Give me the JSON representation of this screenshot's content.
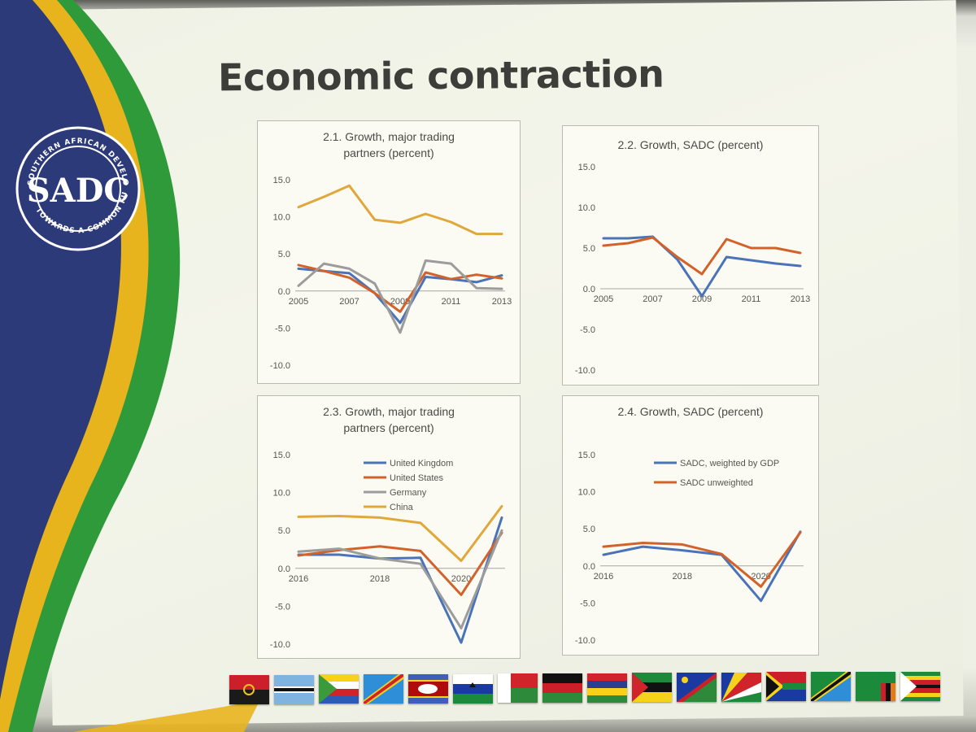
{
  "slide": {
    "title": "Economic contraction",
    "logo": {
      "ring_text_top": "SOUTHERN AFRICAN DEVELOPMENT COMMUNITY",
      "ring_text_bottom": "TOWARDS A COMMON FUTURE",
      "mark": "SADC"
    },
    "colors": {
      "navy": "#2d3a7a",
      "gold": "#e8b41e",
      "green": "#2f9a3a",
      "blue_series": "#4a73b8",
      "orange_series": "#d2622a",
      "gray_series": "#9c9c9c",
      "gold_series": "#e0a83a"
    },
    "flags": [
      "angola-flag",
      "botswana-flag",
      "comoros-flag",
      "drc-flag",
      "eswatini-flag",
      "lesotho-flag",
      "madagascar-flag",
      "malawi-flag",
      "mauritius-flag",
      "mozambique-flag",
      "namibia-flag",
      "seychelles-flag",
      "south-africa-flag",
      "tanzania-flag",
      "zambia-flag",
      "zimbabwe-flag"
    ]
  },
  "chart_data": [
    {
      "id": "c21",
      "type": "line",
      "title_lines": [
        "2.1. Growth, major trading",
        "partners (percent)"
      ],
      "x": [
        2005,
        2006,
        2007,
        2008,
        2009,
        2010,
        2011,
        2012,
        2013
      ],
      "x_tick_labels": [
        "2005",
        "2007",
        "2009",
        "2011",
        "2013"
      ],
      "y_ticks": [
        "15.0",
        "10.0",
        "5.0",
        "0.0",
        "-5.0",
        "-10.0"
      ],
      "ylim": [
        -10,
        15
      ],
      "legend": "none",
      "series": [
        {
          "color": "#4a73b8",
          "values": [
            3.0,
            2.7,
            2.4,
            -0.3,
            -4.3,
            1.9,
            1.6,
            1.2,
            2.1
          ]
        },
        {
          "color": "#d2622a",
          "values": [
            3.5,
            2.7,
            1.8,
            -0.3,
            -2.8,
            2.5,
            1.6,
            2.2,
            1.7
          ]
        },
        {
          "color": "#9c9c9c",
          "values": [
            0.7,
            3.7,
            3.0,
            1.0,
            -5.6,
            4.1,
            3.7,
            0.4,
            0.3
          ]
        },
        {
          "color": "#e0a83a",
          "values": [
            11.3,
            12.7,
            14.2,
            9.6,
            9.2,
            10.4,
            9.3,
            7.7,
            7.7
          ]
        }
      ]
    },
    {
      "id": "c22",
      "type": "line",
      "title_lines": [
        "2.2. Growth, SADC (percent)"
      ],
      "x": [
        2005,
        2006,
        2007,
        2008,
        2009,
        2010,
        2011,
        2012,
        2013
      ],
      "x_tick_labels": [
        "2005",
        "2007",
        "2009",
        "2011",
        "2013"
      ],
      "y_ticks": [
        "15.0",
        "10.0",
        "5.0",
        "0.0",
        "-5.0",
        "-10.0"
      ],
      "ylim": [
        -10,
        15
      ],
      "legend": "none",
      "series": [
        {
          "color": "#4a73b8",
          "values": [
            6.2,
            6.2,
            6.4,
            3.6,
            -0.9,
            3.9,
            3.5,
            3.1,
            2.8
          ]
        },
        {
          "color": "#d2622a",
          "values": [
            5.3,
            5.6,
            6.3,
            3.9,
            1.8,
            6.1,
            5.0,
            5.0,
            4.4
          ]
        }
      ]
    },
    {
      "id": "c23",
      "type": "line",
      "title_lines": [
        "2.3. Growth, major trading",
        "partners (percent)"
      ],
      "x": [
        2016,
        2017,
        2018,
        2019,
        2020,
        2021
      ],
      "x_tick_labels": [
        "2016",
        "2018",
        "2020"
      ],
      "y_ticks": [
        "15.0",
        "10.0",
        "5.0",
        "0.0",
        "-5.0",
        "-10.0"
      ],
      "ylim": [
        -10,
        15
      ],
      "legend": "top-left",
      "series": [
        {
          "name": "United Kingdom",
          "color": "#4a73b8",
          "values": [
            1.8,
            1.8,
            1.3,
            1.4,
            -9.8,
            6.7
          ]
        },
        {
          "name": "United States",
          "color": "#d2622a",
          "values": [
            1.7,
            2.4,
            2.9,
            2.3,
            -3.5,
            4.7
          ]
        },
        {
          "name": "Germany",
          "color": "#9c9c9c",
          "values": [
            2.2,
            2.6,
            1.3,
            0.6,
            -7.9,
            5.0
          ]
        },
        {
          "name": "China",
          "color": "#e0a83a",
          "values": [
            6.8,
            6.9,
            6.7,
            6.0,
            1.0,
            8.2
          ]
        }
      ]
    },
    {
      "id": "c24",
      "type": "line",
      "title_lines": [
        "2.4. Growth, SADC (percent)"
      ],
      "x": [
        2016,
        2017,
        2018,
        2019,
        2020,
        2021
      ],
      "x_tick_labels": [
        "2016",
        "2018",
        "2020"
      ],
      "y_ticks": [
        "15.0",
        "10.0",
        "5.0",
        "0.0",
        "-5.0",
        "-10.0"
      ],
      "ylim": [
        -10,
        15
      ],
      "legend": "top-left",
      "series": [
        {
          "name": "SADC, weighted by GDP",
          "color": "#4a73b8",
          "values": [
            1.5,
            2.6,
            2.1,
            1.5,
            -4.7,
            4.6
          ]
        },
        {
          "name": "SADC unweighted",
          "color": "#d2622a",
          "values": [
            2.6,
            3.1,
            2.9,
            1.6,
            -2.8,
            4.5
          ]
        }
      ]
    }
  ]
}
